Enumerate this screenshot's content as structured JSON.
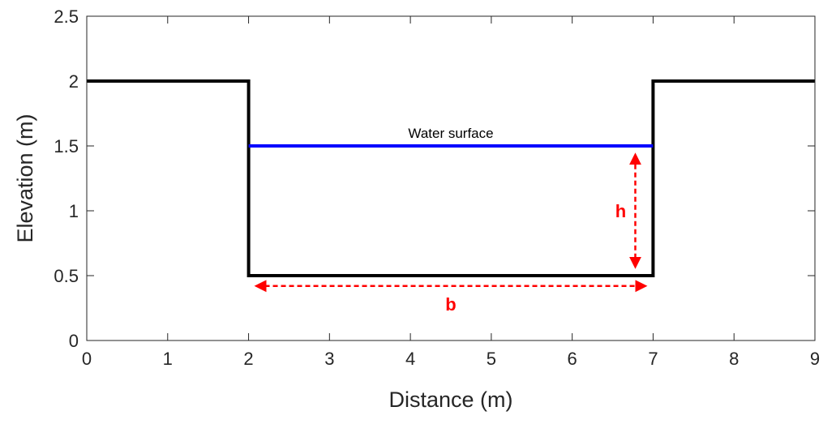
{
  "chart_data": {
    "type": "line",
    "xlabel": "Distance (m)",
    "ylabel": "Elevation (m)",
    "xlim": [
      0,
      9
    ],
    "ylim": [
      0,
      2.5
    ],
    "x_ticks": [
      "0",
      "1",
      "2",
      "3",
      "4",
      "5",
      "6",
      "7",
      "8",
      "9"
    ],
    "y_ticks": [
      "0",
      "0.5",
      "1",
      "1.5",
      "2",
      "2.5"
    ],
    "grid": false,
    "series": [
      {
        "color": "#000000",
        "x": [
          0,
          2,
          2,
          7,
          7,
          9
        ],
        "y": [
          2,
          2,
          0.5,
          0.5,
          2,
          2
        ]
      },
      {
        "color": "#0000ff",
        "x": [
          2,
          7
        ],
        "y": [
          1.5,
          1.5
        ]
      }
    ],
    "annotations": {
      "water_surface_label": "Water surface",
      "h_label": "h",
      "b_label": "b",
      "arrow_color": "#ff0000",
      "h_arrow": {
        "x": 6.78,
        "y_from": 0.57,
        "y_to": 1.43
      },
      "b_arrow": {
        "y": 0.42,
        "x_from": 2.1,
        "x_to": 6.9
      }
    }
  }
}
